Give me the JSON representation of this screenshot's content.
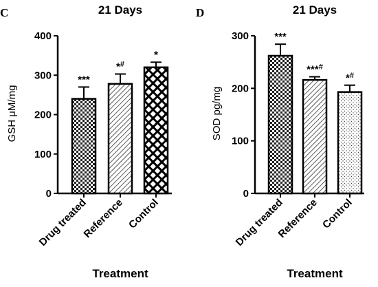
{
  "chart_data": [
    {
      "type": "bar",
      "panel": "C",
      "title": "21 Days",
      "xlabel": "Treatment",
      "ylabel": "GSH μM/mg",
      "ylim": [
        0,
        400
      ],
      "yticks": [
        0,
        100,
        200,
        300,
        400
      ],
      "categories": [
        "Drug treated",
        "Reference",
        "Control"
      ],
      "values": [
        240,
        278,
        320
      ],
      "errors": [
        30,
        25,
        13
      ],
      "significance": [
        {
          "main": "***",
          "sup": ""
        },
        {
          "main": "*",
          "sup": "#"
        },
        {
          "main": "*",
          "sup": ""
        }
      ],
      "patterns": [
        "checker",
        "diagonal",
        "cross"
      ]
    },
    {
      "type": "bar",
      "panel": "D",
      "title": "21 Days",
      "xlabel": "Treatment",
      "ylabel": "SOD pg/mg",
      "ylim": [
        0,
        300
      ],
      "yticks": [
        0,
        100,
        200,
        300
      ],
      "categories": [
        "Drug treated",
        "Reference",
        "Control"
      ],
      "values": [
        262,
        216,
        193
      ],
      "errors": [
        22,
        6,
        13
      ],
      "significance": [
        {
          "main": "***",
          "sup": ""
        },
        {
          "main": "***",
          "sup": "#"
        },
        {
          "main": "*",
          "sup": "#"
        }
      ],
      "patterns": [
        "checker",
        "diagonal",
        "dots"
      ]
    }
  ]
}
